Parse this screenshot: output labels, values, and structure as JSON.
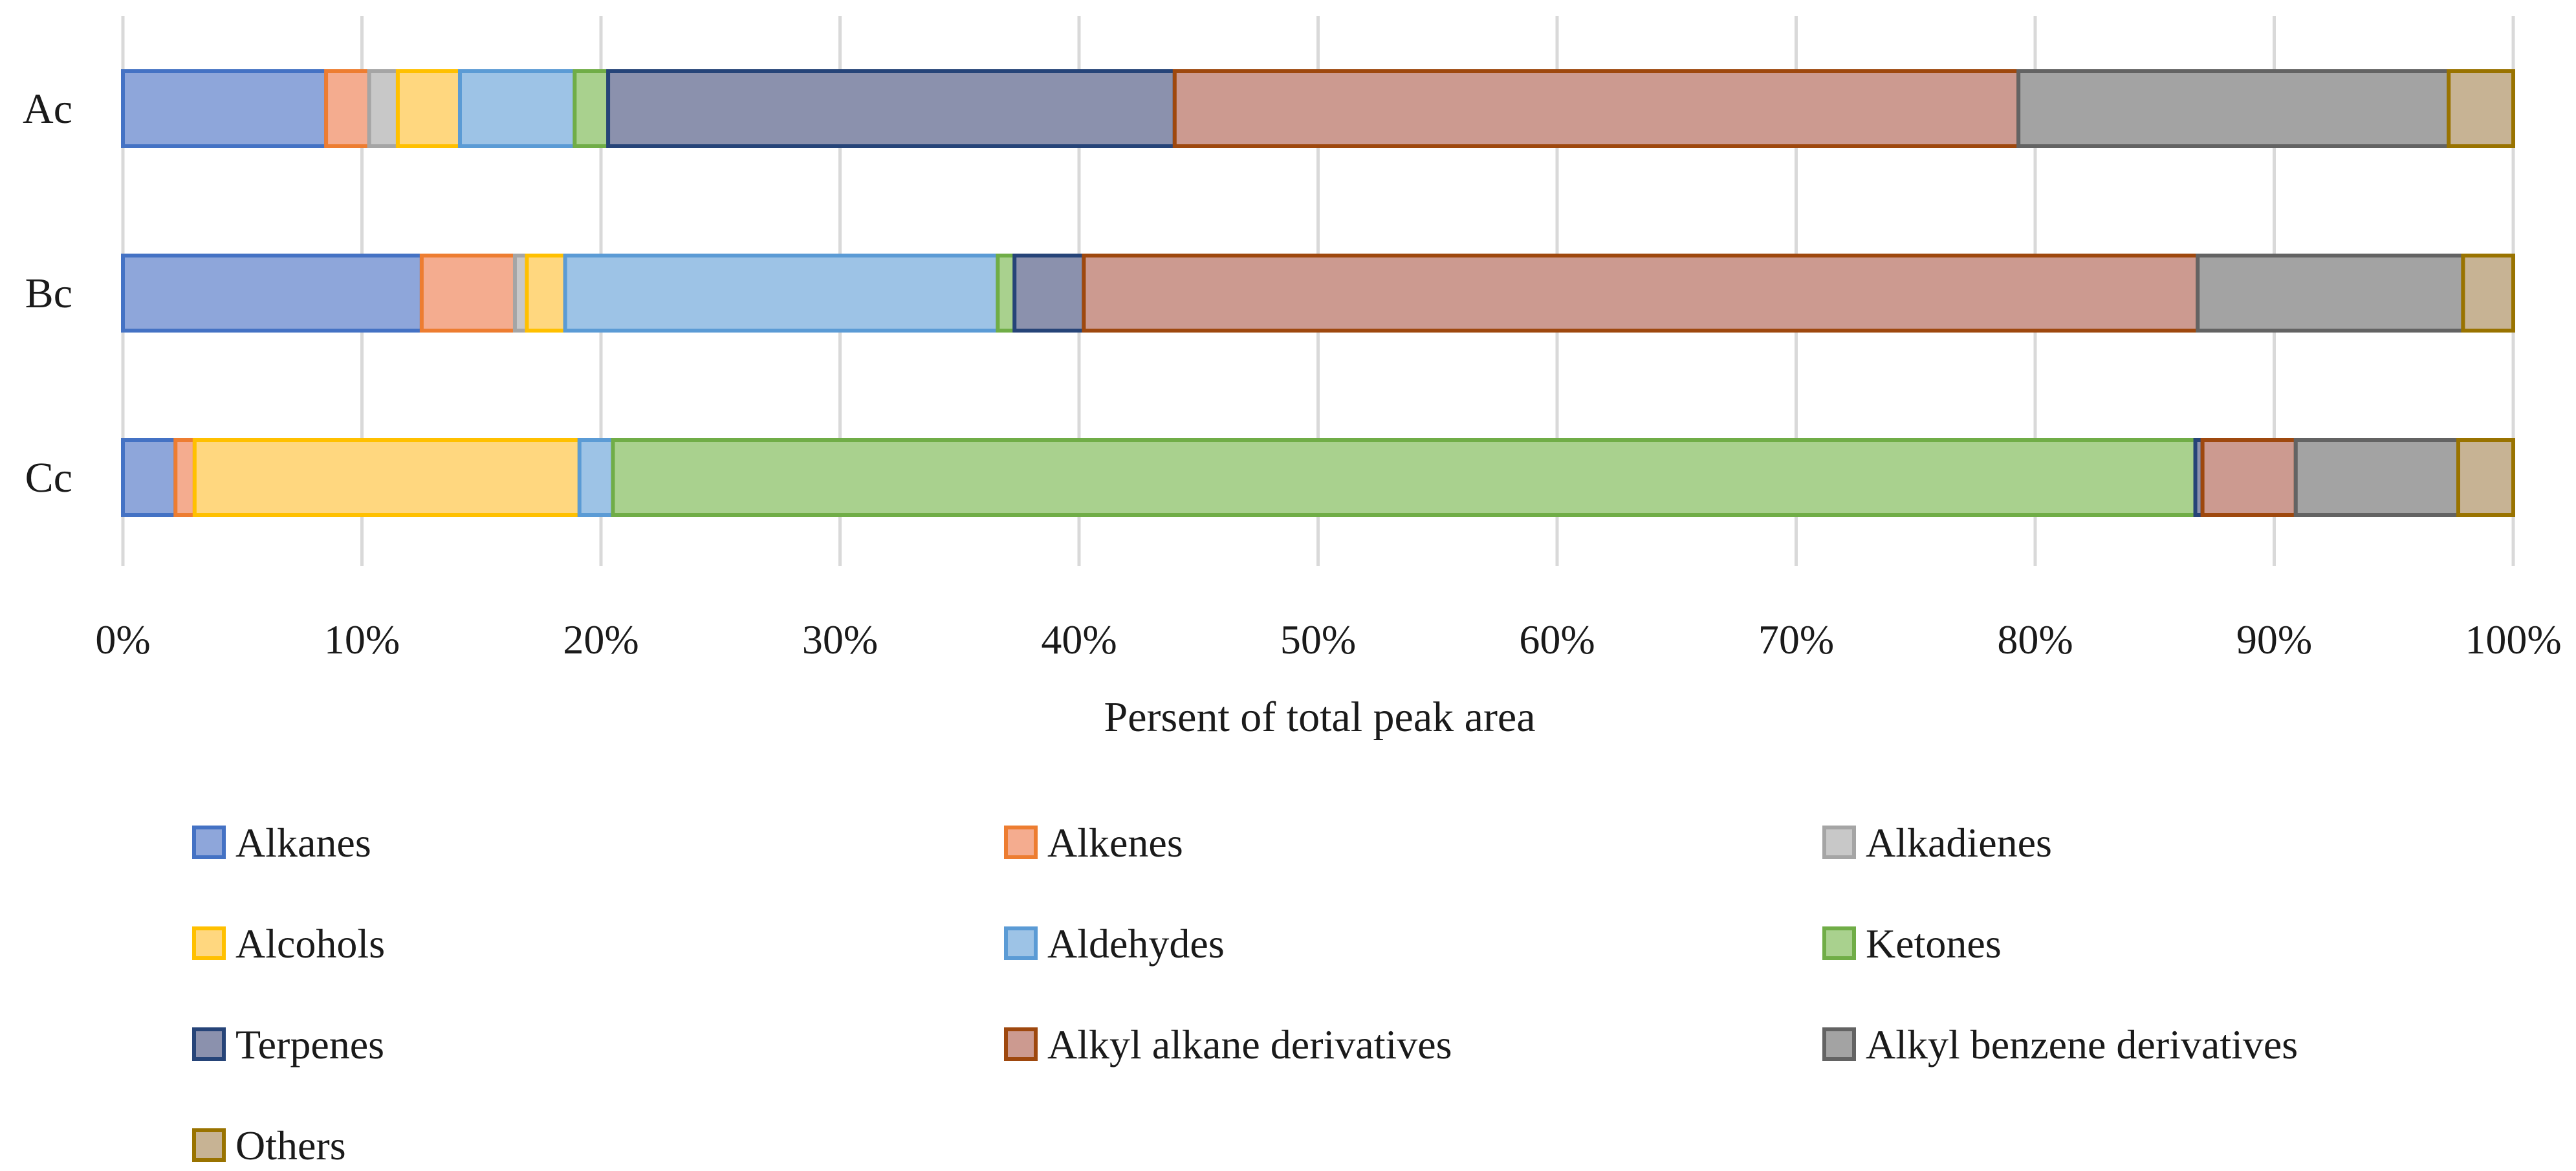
{
  "chart_data": {
    "type": "bar",
    "orientation": "horizontal",
    "stacked": "percent",
    "title": "",
    "xlabel": "Persent of total peak area",
    "ylabel": "",
    "xlim": [
      0,
      100
    ],
    "x_ticks": [
      "0%",
      "10%",
      "20%",
      "30%",
      "40%",
      "50%",
      "60%",
      "70%",
      "80%",
      "90%",
      "100%"
    ],
    "grid": "vertical",
    "legend_position": "bottom",
    "categories": [
      "Ac",
      "Bc",
      "Cc"
    ],
    "series": [
      {
        "name": "Alkanes",
        "color": "#8EA6DA",
        "border": "#4472C4",
        "values": [
          8.5,
          12.5,
          2.2
        ]
      },
      {
        "name": "Alkenes",
        "color": "#F4AC8F",
        "border": "#ED7D31",
        "values": [
          1.8,
          3.9,
          0.8
        ]
      },
      {
        "name": "Alkadienes",
        "color": "#C8C8C8",
        "border": "#A5A5A5",
        "values": [
          1.2,
          0.5,
          0.0
        ]
      },
      {
        "name": "Alcohols",
        "color": "#FFD77F",
        "border": "#FFC000",
        "values": [
          2.6,
          1.6,
          16.1
        ]
      },
      {
        "name": "Aldehydes",
        "color": "#9DC3E6",
        "border": "#5B9BD5",
        "values": [
          4.8,
          18.1,
          1.4
        ]
      },
      {
        "name": "Ketones",
        "color": "#A9D18E",
        "border": "#70AD47",
        "values": [
          1.4,
          0.7,
          66.2
        ]
      },
      {
        "name": "Terpenes",
        "color": "#8B91AD",
        "border": "#264478",
        "values": [
          23.7,
          2.9,
          0.3
        ]
      },
      {
        "name": "Alkyl alkane derivatives",
        "color": "#CC9A90",
        "border": "#9E480E",
        "values": [
          35.3,
          46.6,
          3.9
        ]
      },
      {
        "name": "Alkyl benzene derivatives",
        "color": "#A3A3A3",
        "border": "#636363",
        "values": [
          18.0,
          11.1,
          6.8
        ]
      },
      {
        "name": "Others",
        "color": "#C7B394",
        "border": "#997300",
        "values": [
          2.7,
          2.1,
          2.3
        ]
      }
    ]
  }
}
